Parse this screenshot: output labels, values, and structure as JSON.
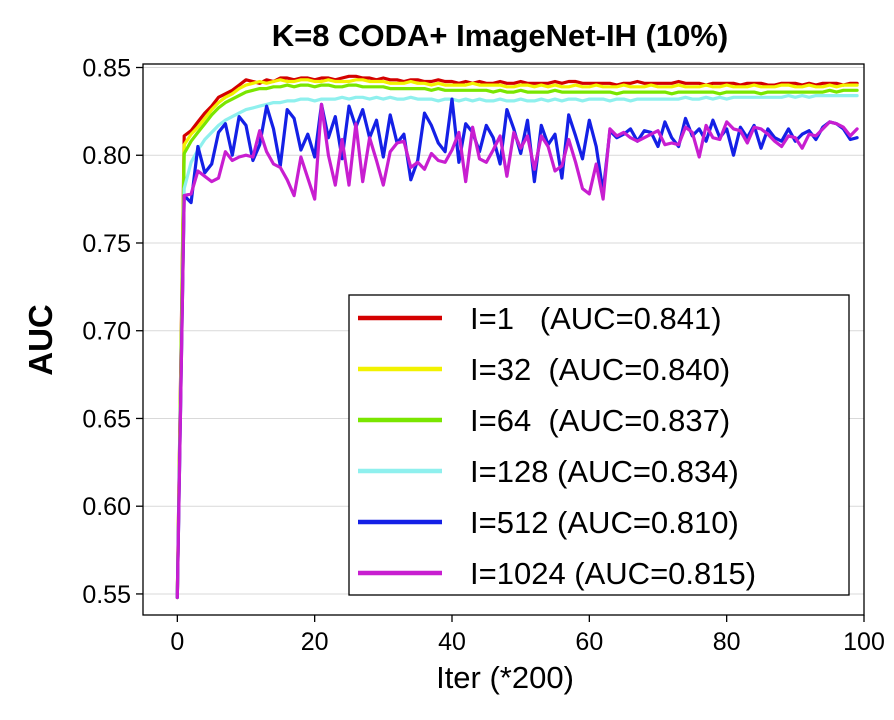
{
  "chart_data": {
    "type": "line",
    "title": "K=8 CODA+ ImageNet-IH (10%)",
    "xlabel": "Iter (*200)",
    "ylabel": "AUC",
    "xlim": [
      -5,
      100
    ],
    "ylim": [
      0.538,
      0.852
    ],
    "xticks": [
      0,
      20,
      40,
      60,
      80,
      100
    ],
    "yticks": [
      0.55,
      0.6,
      0.65,
      0.7,
      0.75,
      0.8,
      0.85
    ],
    "xtick_labels": [
      "0",
      "20",
      "40",
      "60",
      "80",
      "100"
    ],
    "ytick_labels": [
      "0.55",
      "0.60",
      "0.65",
      "0.70",
      "0.75",
      "0.80",
      "0.85"
    ],
    "grid": "horizontal",
    "legend_position": "lower-right",
    "x": [
      0,
      1,
      2,
      3,
      4,
      5,
      6,
      7,
      8,
      9,
      10,
      11,
      12,
      13,
      14,
      15,
      16,
      17,
      18,
      19,
      20,
      21,
      22,
      23,
      24,
      25,
      26,
      27,
      28,
      29,
      30,
      31,
      32,
      33,
      34,
      35,
      36,
      37,
      38,
      39,
      40,
      41,
      42,
      43,
      44,
      45,
      46,
      47,
      48,
      49,
      50,
      51,
      52,
      53,
      54,
      55,
      56,
      57,
      58,
      59,
      60,
      61,
      62,
      63,
      64,
      65,
      66,
      67,
      68,
      69,
      70,
      71,
      72,
      73,
      74,
      75,
      76,
      77,
      78,
      79,
      80,
      81,
      82,
      83,
      84,
      85,
      86,
      87,
      88,
      89,
      90,
      91,
      92,
      93,
      94,
      95,
      96,
      97,
      98,
      99
    ],
    "series": [
      {
        "name": "I=1",
        "legend": "I=1   (AUC=0.841)",
        "color": "#d40000",
        "values": [
          0.548,
          0.811,
          0.814,
          0.819,
          0.824,
          0.828,
          0.833,
          0.835,
          0.837,
          0.84,
          0.843,
          0.842,
          0.841,
          0.843,
          0.842,
          0.844,
          0.844,
          0.843,
          0.844,
          0.844,
          0.843,
          0.844,
          0.844,
          0.843,
          0.844,
          0.845,
          0.845,
          0.844,
          0.844,
          0.843,
          0.844,
          0.843,
          0.843,
          0.842,
          0.843,
          0.843,
          0.842,
          0.842,
          0.843,
          0.842,
          0.842,
          0.841,
          0.842,
          0.841,
          0.842,
          0.841,
          0.841,
          0.842,
          0.841,
          0.841,
          0.842,
          0.841,
          0.841,
          0.841,
          0.841,
          0.842,
          0.841,
          0.842,
          0.842,
          0.841,
          0.841,
          0.841,
          0.841,
          0.841,
          0.84,
          0.841,
          0.841,
          0.842,
          0.841,
          0.841,
          0.841,
          0.841,
          0.841,
          0.842,
          0.841,
          0.841,
          0.841,
          0.84,
          0.841,
          0.841,
          0.841,
          0.841,
          0.84,
          0.841,
          0.841,
          0.841,
          0.84,
          0.84,
          0.841,
          0.841,
          0.841,
          0.84,
          0.841,
          0.84,
          0.841,
          0.841,
          0.841,
          0.84,
          0.841,
          0.841
        ]
      },
      {
        "name": "I=32",
        "legend": "I=32  (AUC=0.840)",
        "color": "#f2f200",
        "values": [
          0.548,
          0.806,
          0.812,
          0.816,
          0.821,
          0.826,
          0.83,
          0.833,
          0.835,
          0.838,
          0.84,
          0.841,
          0.842,
          0.841,
          0.842,
          0.843,
          0.842,
          0.842,
          0.843,
          0.843,
          0.842,
          0.842,
          0.843,
          0.842,
          0.842,
          0.842,
          0.843,
          0.843,
          0.842,
          0.842,
          0.842,
          0.841,
          0.841,
          0.841,
          0.842,
          0.841,
          0.841,
          0.84,
          0.841,
          0.84,
          0.84,
          0.84,
          0.84,
          0.841,
          0.84,
          0.84,
          0.84,
          0.84,
          0.839,
          0.839,
          0.84,
          0.84,
          0.839,
          0.84,
          0.839,
          0.84,
          0.839,
          0.839,
          0.84,
          0.839,
          0.839,
          0.84,
          0.839,
          0.839,
          0.839,
          0.84,
          0.839,
          0.839,
          0.839,
          0.84,
          0.839,
          0.839,
          0.839,
          0.84,
          0.839,
          0.839,
          0.839,
          0.84,
          0.839,
          0.839,
          0.84,
          0.839,
          0.839,
          0.839,
          0.84,
          0.839,
          0.839,
          0.839,
          0.84,
          0.84,
          0.839,
          0.839,
          0.84,
          0.839,
          0.839,
          0.84,
          0.839,
          0.84,
          0.84,
          0.84
        ]
      },
      {
        "name": "I=64",
        "legend": "I=64  (AUC=0.837)",
        "color": "#7ae600",
        "values": [
          0.548,
          0.801,
          0.808,
          0.813,
          0.818,
          0.823,
          0.827,
          0.83,
          0.832,
          0.834,
          0.836,
          0.837,
          0.838,
          0.838,
          0.839,
          0.839,
          0.84,
          0.839,
          0.84,
          0.84,
          0.839,
          0.84,
          0.84,
          0.839,
          0.839,
          0.84,
          0.84,
          0.839,
          0.839,
          0.839,
          0.839,
          0.838,
          0.838,
          0.838,
          0.838,
          0.838,
          0.838,
          0.837,
          0.838,
          0.837,
          0.837,
          0.837,
          0.837,
          0.837,
          0.837,
          0.837,
          0.836,
          0.837,
          0.836,
          0.836,
          0.837,
          0.836,
          0.836,
          0.836,
          0.836,
          0.837,
          0.836,
          0.836,
          0.836,
          0.836,
          0.836,
          0.836,
          0.836,
          0.836,
          0.835,
          0.836,
          0.836,
          0.836,
          0.836,
          0.836,
          0.836,
          0.836,
          0.835,
          0.836,
          0.836,
          0.836,
          0.836,
          0.836,
          0.836,
          0.835,
          0.836,
          0.836,
          0.836,
          0.836,
          0.836,
          0.835,
          0.836,
          0.836,
          0.836,
          0.836,
          0.836,
          0.836,
          0.836,
          0.836,
          0.836,
          0.837,
          0.836,
          0.837,
          0.837,
          0.837
        ]
      },
      {
        "name": "I=128",
        "legend": "I=128 (AUC=0.834)",
        "color": "#8ff0ee",
        "values": [
          0.548,
          0.781,
          0.796,
          0.803,
          0.809,
          0.813,
          0.817,
          0.82,
          0.822,
          0.824,
          0.826,
          0.827,
          0.828,
          0.829,
          0.83,
          0.83,
          0.831,
          0.831,
          0.832,
          0.832,
          0.831,
          0.832,
          0.832,
          0.832,
          0.833,
          0.832,
          0.833,
          0.833,
          0.832,
          0.833,
          0.832,
          0.833,
          0.832,
          0.832,
          0.833,
          0.832,
          0.832,
          0.832,
          0.831,
          0.832,
          0.832,
          0.831,
          0.832,
          0.831,
          0.832,
          0.831,
          0.831,
          0.832,
          0.831,
          0.831,
          0.832,
          0.831,
          0.831,
          0.832,
          0.831,
          0.832,
          0.831,
          0.832,
          0.832,
          0.831,
          0.832,
          0.832,
          0.832,
          0.831,
          0.832,
          0.832,
          0.831,
          0.832,
          0.832,
          0.832,
          0.832,
          0.832,
          0.832,
          0.832,
          0.833,
          0.832,
          0.832,
          0.833,
          0.832,
          0.833,
          0.832,
          0.833,
          0.833,
          0.833,
          0.833,
          0.833,
          0.833,
          0.833,
          0.833,
          0.834,
          0.833,
          0.834,
          0.833,
          0.834,
          0.834,
          0.834,
          0.834,
          0.834,
          0.834,
          0.834
        ]
      },
      {
        "name": "I=512",
        "legend": "I=512 (AUC=0.810)",
        "color": "#1420e6",
        "values": [
          0.548,
          0.777,
          0.773,
          0.805,
          0.79,
          0.795,
          0.813,
          0.818,
          0.8,
          0.822,
          0.817,
          0.797,
          0.806,
          0.828,
          0.815,
          0.794,
          0.826,
          0.821,
          0.803,
          0.812,
          0.799,
          0.829,
          0.81,
          0.822,
          0.798,
          0.828,
          0.816,
          0.826,
          0.81,
          0.82,
          0.799,
          0.823,
          0.807,
          0.812,
          0.786,
          0.797,
          0.824,
          0.817,
          0.807,
          0.802,
          0.832,
          0.796,
          0.818,
          0.813,
          0.802,
          0.817,
          0.81,
          0.795,
          0.826,
          0.815,
          0.801,
          0.82,
          0.785,
          0.817,
          0.806,
          0.812,
          0.787,
          0.823,
          0.811,
          0.798,
          0.82,
          0.805,
          0.779,
          0.814,
          0.81,
          0.812,
          0.815,
          0.808,
          0.814,
          0.813,
          0.805,
          0.819,
          0.81,
          0.805,
          0.821,
          0.811,
          0.815,
          0.808,
          0.82,
          0.81,
          0.815,
          0.8,
          0.816,
          0.81,
          0.817,
          0.804,
          0.815,
          0.81,
          0.808,
          0.815,
          0.808,
          0.812,
          0.814,
          0.809,
          0.816,
          0.819,
          0.818,
          0.815,
          0.809,
          0.81
        ]
      },
      {
        "name": "I=1024",
        "legend": "I=1024 (AUC=0.815)",
        "color": "#c81ed0",
        "values": [
          0.548,
          0.777,
          0.778,
          0.791,
          0.788,
          0.785,
          0.787,
          0.802,
          0.797,
          0.799,
          0.8,
          0.799,
          0.814,
          0.802,
          0.795,
          0.793,
          0.786,
          0.777,
          0.799,
          0.787,
          0.775,
          0.829,
          0.8,
          0.783,
          0.809,
          0.783,
          0.818,
          0.785,
          0.81,
          0.797,
          0.783,
          0.802,
          0.807,
          0.808,
          0.793,
          0.796,
          0.792,
          0.801,
          0.797,
          0.796,
          0.803,
          0.813,
          0.785,
          0.816,
          0.798,
          0.796,
          0.803,
          0.811,
          0.788,
          0.813,
          0.804,
          0.811,
          0.792,
          0.811,
          0.805,
          0.791,
          0.794,
          0.809,
          0.796,
          0.781,
          0.778,
          0.795,
          0.775,
          0.815,
          0.811,
          0.813,
          0.81,
          0.808,
          0.81,
          0.812,
          0.814,
          0.806,
          0.807,
          0.806,
          0.816,
          0.813,
          0.799,
          0.817,
          0.81,
          0.809,
          0.819,
          0.815,
          0.814,
          0.807,
          0.816,
          0.815,
          0.812,
          0.808,
          0.805,
          0.811,
          0.81,
          0.804,
          0.812,
          0.811,
          0.815,
          0.819,
          0.818,
          0.816,
          0.811,
          0.815
        ]
      }
    ]
  }
}
